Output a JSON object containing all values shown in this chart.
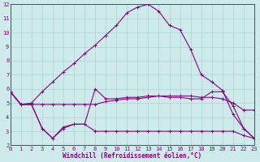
{
  "xlabel": "Windchill (Refroidissement éolien,°C)",
  "bg_color": "#ceeaea",
  "line_color": "#880088",
  "grid_color": "#aad4d4",
  "xlim": [
    0,
    23
  ],
  "ylim": [
    2,
    12
  ],
  "yticks": [
    2,
    3,
    4,
    5,
    6,
    7,
    8,
    9,
    10,
    11,
    12
  ],
  "xticks": [
    0,
    1,
    2,
    3,
    4,
    5,
    6,
    7,
    8,
    9,
    10,
    11,
    12,
    13,
    14,
    15,
    16,
    17,
    18,
    19,
    20,
    21,
    22,
    23
  ],
  "line1_x": [
    0,
    1,
    2,
    3,
    4,
    5,
    6,
    7,
    8,
    9,
    10,
    11,
    12,
    13,
    14,
    15,
    16,
    17,
    18,
    19,
    20,
    21,
    22,
    23
  ],
  "line1_y": [
    5.8,
    4.9,
    4.9,
    3.2,
    2.5,
    3.2,
    3.5,
    3.5,
    6.0,
    5.3,
    5.3,
    5.4,
    5.4,
    5.5,
    5.5,
    5.4,
    5.4,
    5.3,
    5.3,
    5.8,
    5.8,
    4.8,
    3.2,
    2.5
  ],
  "line2_x": [
    0,
    1,
    2,
    3,
    4,
    5,
    6,
    7,
    8,
    9,
    10,
    11,
    12,
    13,
    14,
    15,
    16,
    17,
    18,
    19,
    20,
    21,
    22,
    23
  ],
  "line2_y": [
    5.8,
    4.9,
    4.9,
    4.9,
    4.9,
    4.9,
    4.9,
    4.9,
    4.9,
    5.1,
    5.2,
    5.3,
    5.3,
    5.4,
    5.5,
    5.5,
    5.5,
    5.5,
    5.4,
    5.4,
    5.3,
    5.0,
    4.5,
    4.5
  ],
  "line3_x": [
    0,
    1,
    2,
    3,
    4,
    5,
    6,
    7,
    8,
    9,
    10,
    11,
    12,
    13,
    14,
    15,
    16,
    17,
    18,
    19,
    20,
    21,
    22,
    23
  ],
  "line3_y": [
    5.8,
    4.9,
    4.9,
    3.2,
    2.5,
    3.3,
    3.5,
    3.5,
    3.0,
    3.0,
    3.0,
    3.0,
    3.0,
    3.0,
    3.0,
    3.0,
    3.0,
    3.0,
    3.0,
    3.0,
    3.0,
    3.0,
    2.7,
    2.5
  ],
  "line4_x": [
    0,
    1,
    2,
    3,
    4,
    5,
    6,
    7,
    8,
    9,
    10,
    11,
    12,
    13,
    14,
    15,
    16,
    17,
    18,
    19,
    20,
    21,
    22,
    23
  ],
  "line4_y": [
    5.8,
    4.9,
    5.0,
    5.8,
    6.5,
    7.2,
    7.8,
    8.5,
    9.1,
    9.8,
    10.5,
    11.4,
    11.8,
    12.0,
    11.5,
    10.5,
    10.2,
    8.8,
    7.0,
    6.5,
    5.9,
    4.2,
    3.2,
    2.5
  ],
  "marker": "+",
  "markersize": 3,
  "linewidth": 0.8
}
